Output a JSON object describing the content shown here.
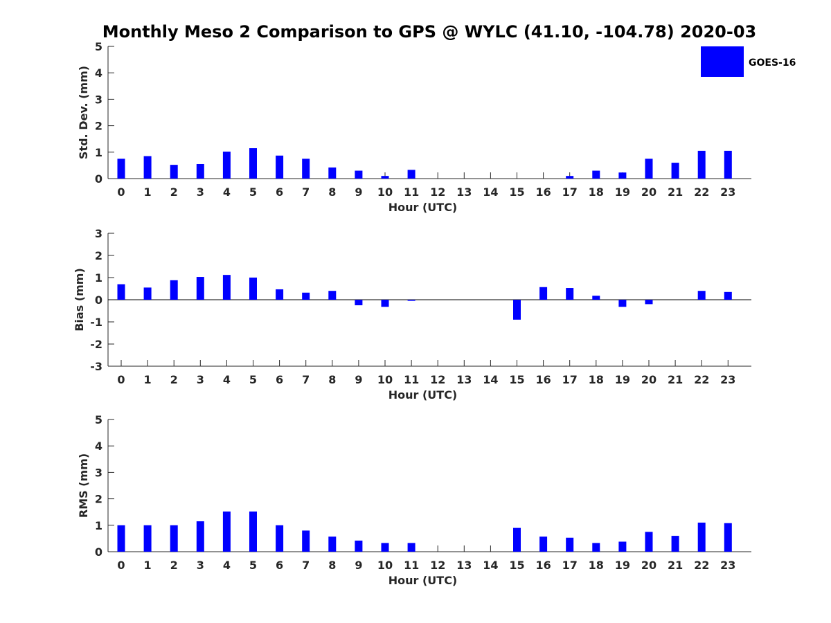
{
  "chart_data": {
    "title": "Monthly Meso 2 Comparison to GPS @ WYLC (41.10, -104.78) 2020-03",
    "type": "bar",
    "legend": {
      "label": "GOES-16",
      "color": "#0000ff",
      "placement": "top-right"
    },
    "categories": [
      "0",
      "1",
      "2",
      "3",
      "4",
      "5",
      "6",
      "7",
      "8",
      "9",
      "10",
      "11",
      "12",
      "13",
      "14",
      "15",
      "16",
      "17",
      "18",
      "19",
      "20",
      "21",
      "22",
      "23"
    ],
    "panels": [
      {
        "name": "std-dev",
        "ylabel": "Std. Dev. (mm)",
        "xlabel": "Hour (UTC)",
        "ylim": [
          0,
          5
        ],
        "yticks": [
          "0",
          "1",
          "2",
          "3",
          "4",
          "5"
        ],
        "values": [
          0.75,
          0.85,
          0.52,
          0.55,
          1.02,
          1.15,
          0.87,
          0.75,
          0.42,
          0.3,
          0.1,
          0.33,
          null,
          null,
          null,
          null,
          null,
          0.1,
          0.3,
          0.23,
          0.75,
          0.6,
          1.05,
          1.05
        ]
      },
      {
        "name": "bias",
        "ylabel": "Bias (mm)",
        "xlabel": "Hour (UTC)",
        "ylim": [
          -3,
          3
        ],
        "yticks": [
          "-3",
          "-2",
          "-1",
          "0",
          "1",
          "2",
          "3"
        ],
        "values": [
          0.7,
          0.55,
          0.88,
          1.03,
          1.12,
          1.0,
          0.47,
          0.32,
          0.4,
          -0.25,
          -0.32,
          -0.05,
          null,
          null,
          null,
          -0.9,
          0.57,
          0.53,
          0.18,
          -0.32,
          -0.2,
          null,
          0.4,
          0.35
        ]
      },
      {
        "name": "rms",
        "ylabel": "RMS (mm)",
        "xlabel": "Hour (UTC)",
        "ylim": [
          0,
          5
        ],
        "yticks": [
          "0",
          "1",
          "2",
          "3",
          "4",
          "5"
        ],
        "values": [
          1.0,
          1.0,
          1.0,
          1.15,
          1.52,
          1.52,
          1.0,
          0.8,
          0.57,
          0.42,
          0.33,
          0.33,
          null,
          null,
          null,
          0.9,
          0.57,
          0.53,
          0.33,
          0.38,
          0.75,
          0.6,
          1.1,
          1.08
        ]
      }
    ]
  }
}
